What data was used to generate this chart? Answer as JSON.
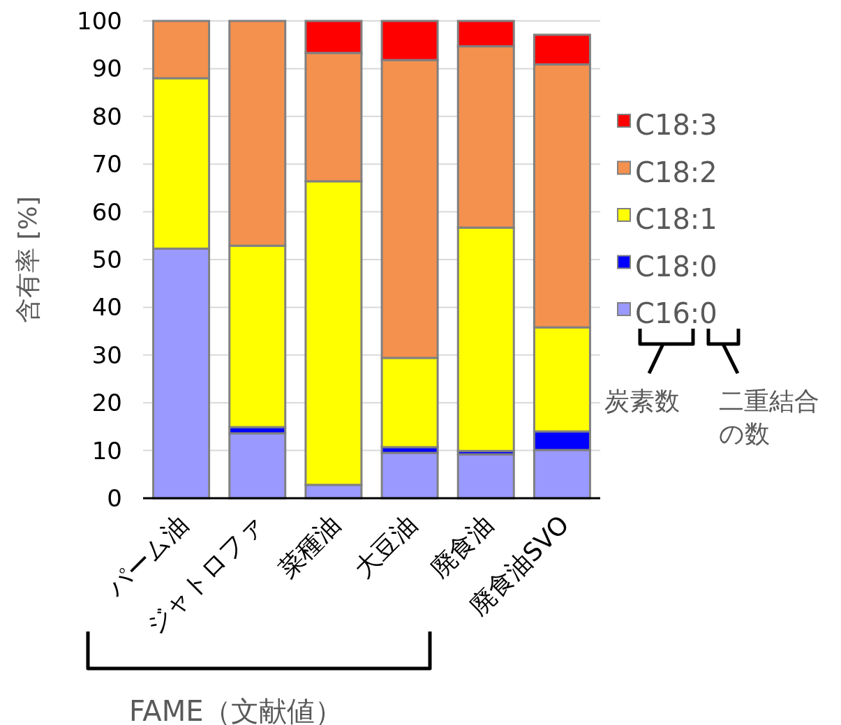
{
  "chart_data": {
    "type": "bar",
    "stacked": true,
    "ylabel": "含有率 [%]",
    "categories": [
      "パーム油",
      "ジャトロファ",
      "菜種油",
      "大豆油",
      "廃食油",
      "廃食油SVO"
    ],
    "series": [
      {
        "name": "C16:0",
        "color": "#9999ff",
        "values": [
          52.3,
          13.6,
          2.8,
          9.5,
          9.2,
          10.1
        ]
      },
      {
        "name": "C18:0",
        "color": "#0000ff",
        "values": [
          null,
          1.3,
          null,
          1.2,
          0.7,
          3.9
        ]
      },
      {
        "name": "C18:1",
        "color": "#ffff00",
        "values": [
          35.7,
          38.0,
          63.6,
          18.7,
          46.8,
          21.8
        ]
      },
      {
        "name": "C18:2",
        "color": "#f4914e",
        "values": [
          12.0,
          47.1,
          26.9,
          62.4,
          38.0,
          55.1
        ]
      },
      {
        "name": "C18:3",
        "color": "#ff0000",
        "values": [
          null,
          null,
          6.7,
          8.2,
          5.3,
          6.2
        ]
      }
    ],
    "ylim": [
      0,
      100
    ],
    "yticks": [
      0,
      10,
      20,
      30,
      40,
      50,
      60,
      70,
      80,
      90,
      100
    ],
    "grid": "y",
    "legend": "right",
    "annotations": [
      "炭素数",
      "二重結合の数",
      "FAME（文献値）"
    ]
  }
}
